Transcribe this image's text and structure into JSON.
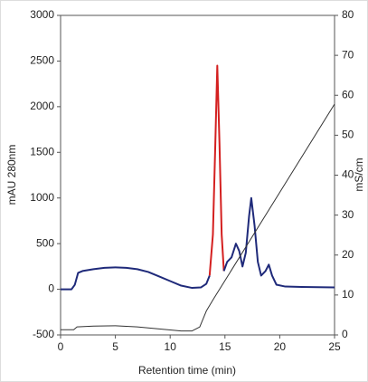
{
  "chart_data": {
    "type": "line",
    "xlabel": "Retention time (min)",
    "ylabel": "mAU 280nm",
    "y2label": "mS/cm",
    "xlim": [
      0,
      25
    ],
    "xticks": [
      0,
      5,
      10,
      15,
      20,
      25
    ],
    "ylim": [
      -500,
      3000
    ],
    "yticks": [
      -500,
      0,
      500,
      1000,
      1500,
      2000,
      2500,
      3000
    ],
    "y2lim": [
      0,
      80
    ],
    "y2ticks": [
      0,
      10,
      20,
      30,
      40,
      50,
      60,
      70,
      80
    ],
    "series": [
      {
        "color": "#1f2a7a",
        "x": [
          0,
          1,
          1.3,
          1.6,
          2,
          3,
          4,
          5,
          6,
          7,
          8,
          9,
          10,
          11,
          12,
          12.8,
          13.3,
          13.6
        ],
        "values": [
          0,
          0,
          50,
          180,
          200,
          220,
          235,
          240,
          235,
          220,
          190,
          140,
          90,
          40,
          15,
          20,
          60,
          150
        ]
      },
      {
        "color": "#d42020",
        "x": [
          13.6,
          13.9,
          14.1,
          14.3,
          14.5,
          14.7,
          14.9
        ],
        "values": [
          150,
          600,
          1500,
          2450,
          1600,
          600,
          200
        ]
      },
      {
        "color": "#1f2a7a",
        "x": [
          14.9,
          15.2,
          15.6,
          16,
          16.3,
          16.6,
          16.9,
          17.2,
          17.4,
          17.7,
          18,
          18.3,
          18.7,
          19,
          19.3,
          19.7,
          20.5,
          22,
          25
        ],
        "values": [
          200,
          300,
          350,
          500,
          420,
          250,
          400,
          800,
          1000,
          700,
          300,
          150,
          200,
          270,
          150,
          50,
          30,
          25,
          20
        ]
      },
      {
        "color": "#333333",
        "axis": "y2",
        "x": [
          0,
          1.2,
          1.5,
          3,
          5,
          7,
          9,
          11,
          12,
          12.7,
          13.3,
          14,
          15,
          20,
          25
        ],
        "values": [
          1.3,
          1.3,
          2,
          2.2,
          2.3,
          2,
          1.5,
          1,
          1,
          2,
          6,
          9.2,
          13.6,
          35.7,
          57.8
        ]
      }
    ]
  }
}
